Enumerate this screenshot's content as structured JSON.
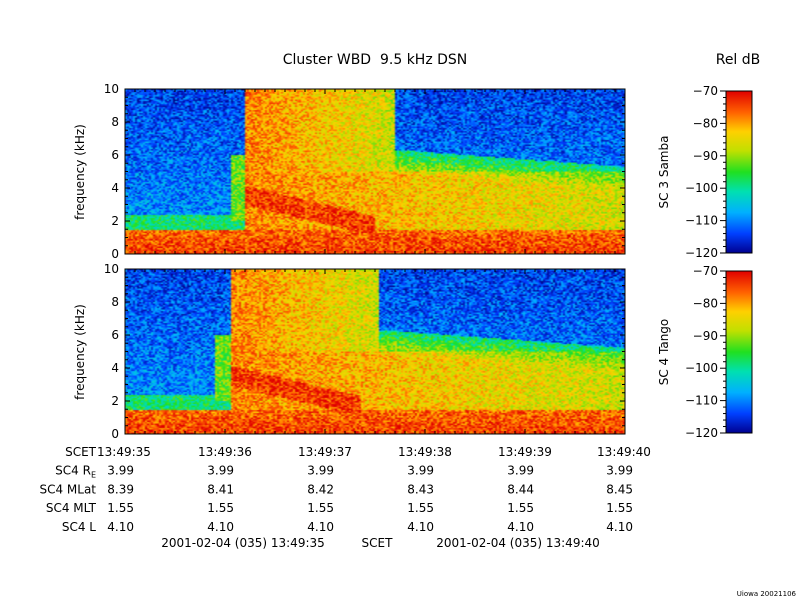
{
  "chart_data": {
    "type": "heatmap",
    "title": "Cluster WBD  9.5 kHz DSN",
    "colorbar_title": "Rel dB",
    "colorscale": "rainbow (blue=low, red=high)",
    "x_ticks": [
      "13:49:35",
      "13:49:36",
      "13:49:37",
      "13:49:38",
      "13:49:39",
      "13:49:40"
    ],
    "x_range": [
      "13:49:35",
      "13:49:40"
    ],
    "panels": [
      {
        "name": "SC 3 Samba",
        "ylabel": "frequency (kHz)",
        "ylim": [
          0,
          10
        ],
        "yticks": [
          "0",
          "2",
          "4",
          "6",
          "8",
          "10"
        ],
        "colorbar_ticks": [
          "-70",
          "-80",
          "-90",
          "-100",
          "-110",
          "-120"
        ],
        "zlim": [
          -120,
          -70
        ],
        "features": {
          "low_band_top_khz": 2,
          "chorus_front_time_s": 1.2,
          "chorus_top_khz": 7
        }
      },
      {
        "name": "SC 4 Tango",
        "ylabel": "frequency (kHz)",
        "ylim": [
          0,
          10
        ],
        "yticks": [
          "0",
          "2",
          "4",
          "6",
          "8",
          "10"
        ],
        "colorbar_ticks": [
          "-70",
          "-80",
          "-90",
          "-100",
          "-110",
          "-120"
        ],
        "zlim": [
          -120,
          -70
        ],
        "features": {
          "low_band_top_khz": 2,
          "chorus_front_time_s": 1.05,
          "chorus_top_khz": 7
        }
      }
    ],
    "ephemeris": {
      "header_label": "SCET",
      "rows": [
        {
          "label_main": "SC4 R",
          "label_sub": "E",
          "values": [
            "3.99",
            "3.99",
            "3.99",
            "3.99",
            "3.99",
            "3.99"
          ]
        },
        {
          "label_main": "SC4 MLat",
          "label_sub": "",
          "values": [
            "8.39",
            "8.41",
            "8.42",
            "8.43",
            "8.44",
            "8.45"
          ]
        },
        {
          "label_main": "SC4 MLT",
          "label_sub": "",
          "values": [
            "1.55",
            "1.55",
            "1.55",
            "1.55",
            "1.55",
            "1.55"
          ]
        },
        {
          "label_main": "SC4 L",
          "label_sub": "",
          "values": [
            "4.10",
            "4.10",
            "4.10",
            "4.10",
            "4.10",
            "4.10"
          ]
        }
      ]
    },
    "time_span": {
      "start": "2001-02-04 (035) 13:49:35",
      "middle": "SCET",
      "end": "2001-02-04 (035) 13:49:40"
    },
    "footer_tag": "Uiowa 20021106"
  }
}
